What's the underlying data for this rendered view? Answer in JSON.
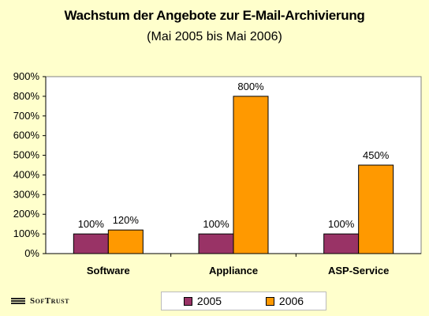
{
  "chart_data": {
    "type": "bar",
    "title": "Wachstum der Angebote zur E-Mail-Archivierung",
    "subtitle": "(Mai 2005 bis Mai 2006)",
    "categories": [
      "Software",
      "Appliance",
      "ASP-Service"
    ],
    "series": [
      {
        "name": "2005",
        "values": [
          100,
          100,
          100
        ],
        "labels": [
          "100%",
          "100%",
          "100%"
        ],
        "color": "#993366"
      },
      {
        "name": "2006",
        "values": [
          120,
          800,
          450
        ],
        "labels": [
          "120%",
          "800%",
          "450%"
        ],
        "color": "#FF9900"
      }
    ],
    "ylim": [
      0,
      900
    ],
    "yticks": [
      "0%",
      "100%",
      "200%",
      "300%",
      "400%",
      "500%",
      "600%",
      "700%",
      "800%",
      "900%"
    ],
    "ytick_values": [
      0,
      100,
      200,
      300,
      400,
      500,
      600,
      700,
      800,
      900
    ],
    "grid": false,
    "legend_position": "bottom",
    "plot_background": "#FFFFFF",
    "page_background": "#FFFFCC"
  },
  "logo": {
    "text": "SofTrust"
  }
}
